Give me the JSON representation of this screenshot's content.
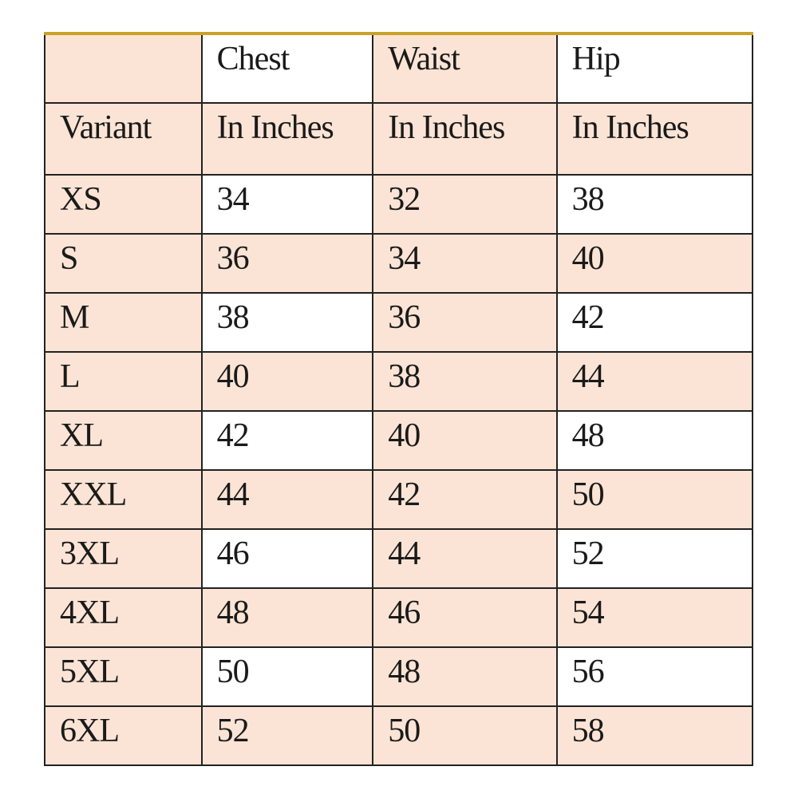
{
  "colors": {
    "shade": "#fbe4d5",
    "top_border": "#c9a227"
  },
  "header": {
    "row1": [
      "",
      "Chest",
      "Waist",
      "Hip"
    ],
    "row2": [
      "Variant",
      "In Inches",
      "In Inches",
      "In Inches"
    ]
  },
  "rows": [
    [
      "XS",
      "34",
      "32",
      "38"
    ],
    [
      "S",
      "36",
      "34",
      "40"
    ],
    [
      "M",
      "38",
      "36",
      "42"
    ],
    [
      "L",
      "40",
      "38",
      "44"
    ],
    [
      "XL",
      "42",
      "40",
      "48"
    ],
    [
      "XXL",
      "44",
      "42",
      "50"
    ],
    [
      "3XL",
      "46",
      "44",
      "52"
    ],
    [
      "4XL",
      "48",
      "46",
      "54"
    ],
    [
      "5XL",
      "50",
      "48",
      "56"
    ],
    [
      "6XL",
      "52",
      "50",
      "58"
    ]
  ]
}
